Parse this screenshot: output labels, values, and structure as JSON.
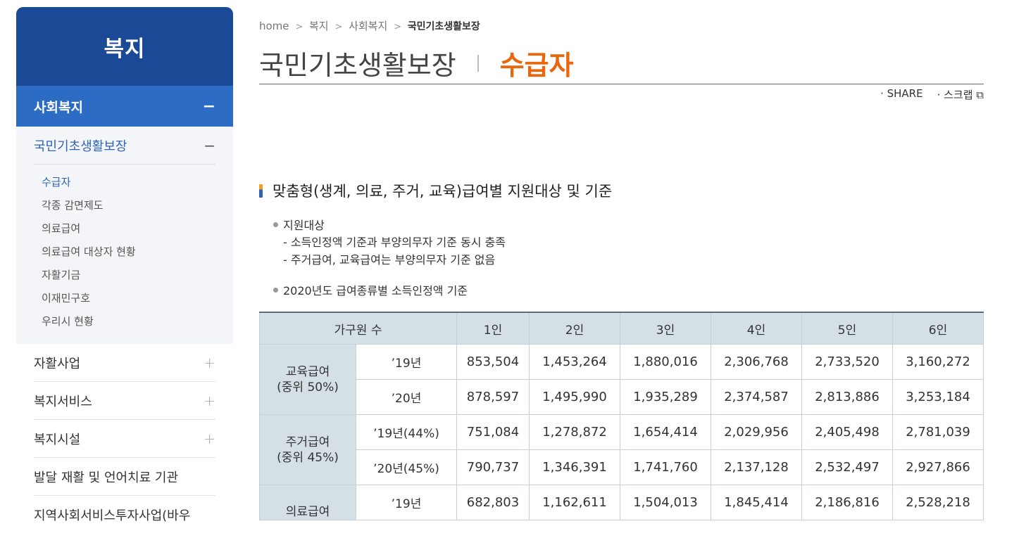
{
  "sidebar": {
    "title": "복지",
    "active_depth1": {
      "label": "사회복지",
      "icon": "minus-icon",
      "toggle": "−"
    },
    "active_depth2": {
      "label": "국민기초생활보장",
      "toggle": "−"
    },
    "depth3_items": [
      "수급자",
      "각종 감면제도",
      "의료급여",
      "의료급여 대상자 현황",
      "자활기금",
      "이재민구호",
      "우리시 현황"
    ],
    "depth1_items": [
      {
        "label": "자활사업",
        "toggle": "+"
      },
      {
        "label": "복지서비스",
        "toggle": "+"
      },
      {
        "label": "복지시설",
        "toggle": "+"
      },
      {
        "label": "발달 재활 및 언어치료 기관"
      },
      {
        "label": "지역사회서비스투자사업(바우"
      }
    ]
  },
  "breadcrumb": {
    "items": [
      "home",
      "복지",
      "사회복지"
    ],
    "current": "국민기초생활보장",
    "separator": ">"
  },
  "page_title": {
    "main": "국민기초생활보장",
    "sub": "수급자"
  },
  "share": {
    "share_label": "· SHARE",
    "scrap_label": "· 스크랩 ⧉"
  },
  "section": {
    "title": "맞춤형(생계, 의료, 주거, 교육)급여별 지원대상 및 기준",
    "bullet1": "지원대상",
    "dash1": "-  소득인정액 기준과 부양의무자 기준 동시 충족",
    "dash2": "-  주거급여, 교육급여는 부양의무자 기준 없음",
    "bullet2": "2020년도 급여종류별 소득인정액 기준"
  },
  "table": {
    "header": [
      "가구원 수",
      "1인",
      "2인",
      "3인",
      "4인",
      "5인",
      "6인"
    ],
    "groups": [
      {
        "name": "교육급여",
        "sub": "(중위 50%)",
        "rows": [
          {
            "year": "’19년",
            "values": [
              "853,504",
              "1,453,264",
              "1,880,016",
              "2,306,768",
              "2,733,520",
              "3,160,272"
            ]
          },
          {
            "year": "’20년",
            "values": [
              "878,597",
              "1,495,990",
              "1,935,289",
              "2,374,587",
              "2,813,886",
              "3,253,184"
            ]
          }
        ]
      },
      {
        "name": "주거급여",
        "sub": "(중위 45%)",
        "rows": [
          {
            "year": "’19년(44%)",
            "values": [
              "751,084",
              "1,278,872",
              "1,654,414",
              "2,029,956",
              "2,405,498",
              "2,781,039"
            ]
          },
          {
            "year": "’20년(45%)",
            "values": [
              "790,737",
              "1,346,391",
              "1,741,760",
              "2,137,128",
              "2,532,497",
              "2,927,866"
            ]
          }
        ]
      },
      {
        "name": "의료급여",
        "sub": "",
        "rows": [
          {
            "year": "’19년",
            "values": [
              "682,803",
              "1,162,611",
              "1,504,013",
              "1,845,414",
              "2,186,816",
              "2,528,218"
            ]
          }
        ]
      }
    ]
  },
  "colors": {
    "sidebar_head": "#1a4a95",
    "sidebar_active": "#2d6cc4",
    "accent_orange": "#e8660c",
    "table_header": "#d5dfe6"
  }
}
